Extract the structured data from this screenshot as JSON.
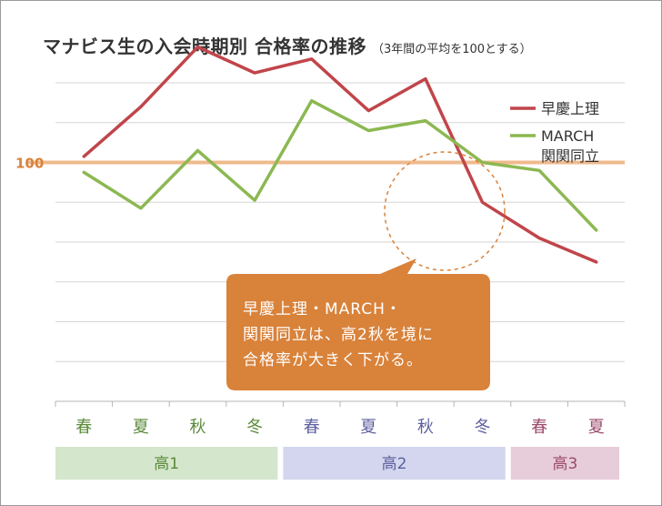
{
  "title": "マナビス生の入会時期別 合格率の推移",
  "title_note": "（3年間の平均を100とする）",
  "reference_label": "100",
  "callout": [
    "早慶上理・MARCH・",
    "関関同立は、高2秋を境に",
    "合格率が大きく下がる。"
  ],
  "colors": {
    "series1": "#c0454a",
    "series2": "#8cb852",
    "reference": "#f0b98c",
    "callout": "#d9823a",
    "grid": "#d6d6d6"
  },
  "chart_data": {
    "type": "line",
    "title": "マナビス生の入会時期別 合格率の推移",
    "subtitle": "（3年間の平均を100とする）",
    "categories": [
      "春",
      "夏",
      "秋",
      "冬",
      "春",
      "夏",
      "秋",
      "冬",
      "春",
      "夏"
    ],
    "category_groups": [
      {
        "label": "高1",
        "count": 4,
        "color": "#d4e6cc",
        "text_color": "#5a8a3a"
      },
      {
        "label": "高2",
        "count": 4,
        "color": "#d3d6ee",
        "text_color": "#5c5f9e"
      },
      {
        "label": "高3",
        "count": 2,
        "color": "#e7ccd9",
        "text_color": "#9a4a6a"
      }
    ],
    "ylim": [
      40,
      120
    ],
    "y_gridlines": [
      50,
      60,
      70,
      80,
      90,
      100,
      110,
      120
    ],
    "reference_line": 100,
    "series": [
      {
        "name": "早慶上理",
        "color": "#c0454a",
        "values": [
          101.5,
          114,
          129,
          122.5,
          126,
          113,
          121,
          90,
          81,
          75
        ]
      },
      {
        "name": "MARCH\n関関同立",
        "color": "#8cb852",
        "values": [
          97.5,
          88.5,
          103,
          90.5,
          115.5,
          108,
          110.5,
          100,
          98,
          83
        ]
      }
    ],
    "legend_position": "top-right",
    "grid": true
  }
}
